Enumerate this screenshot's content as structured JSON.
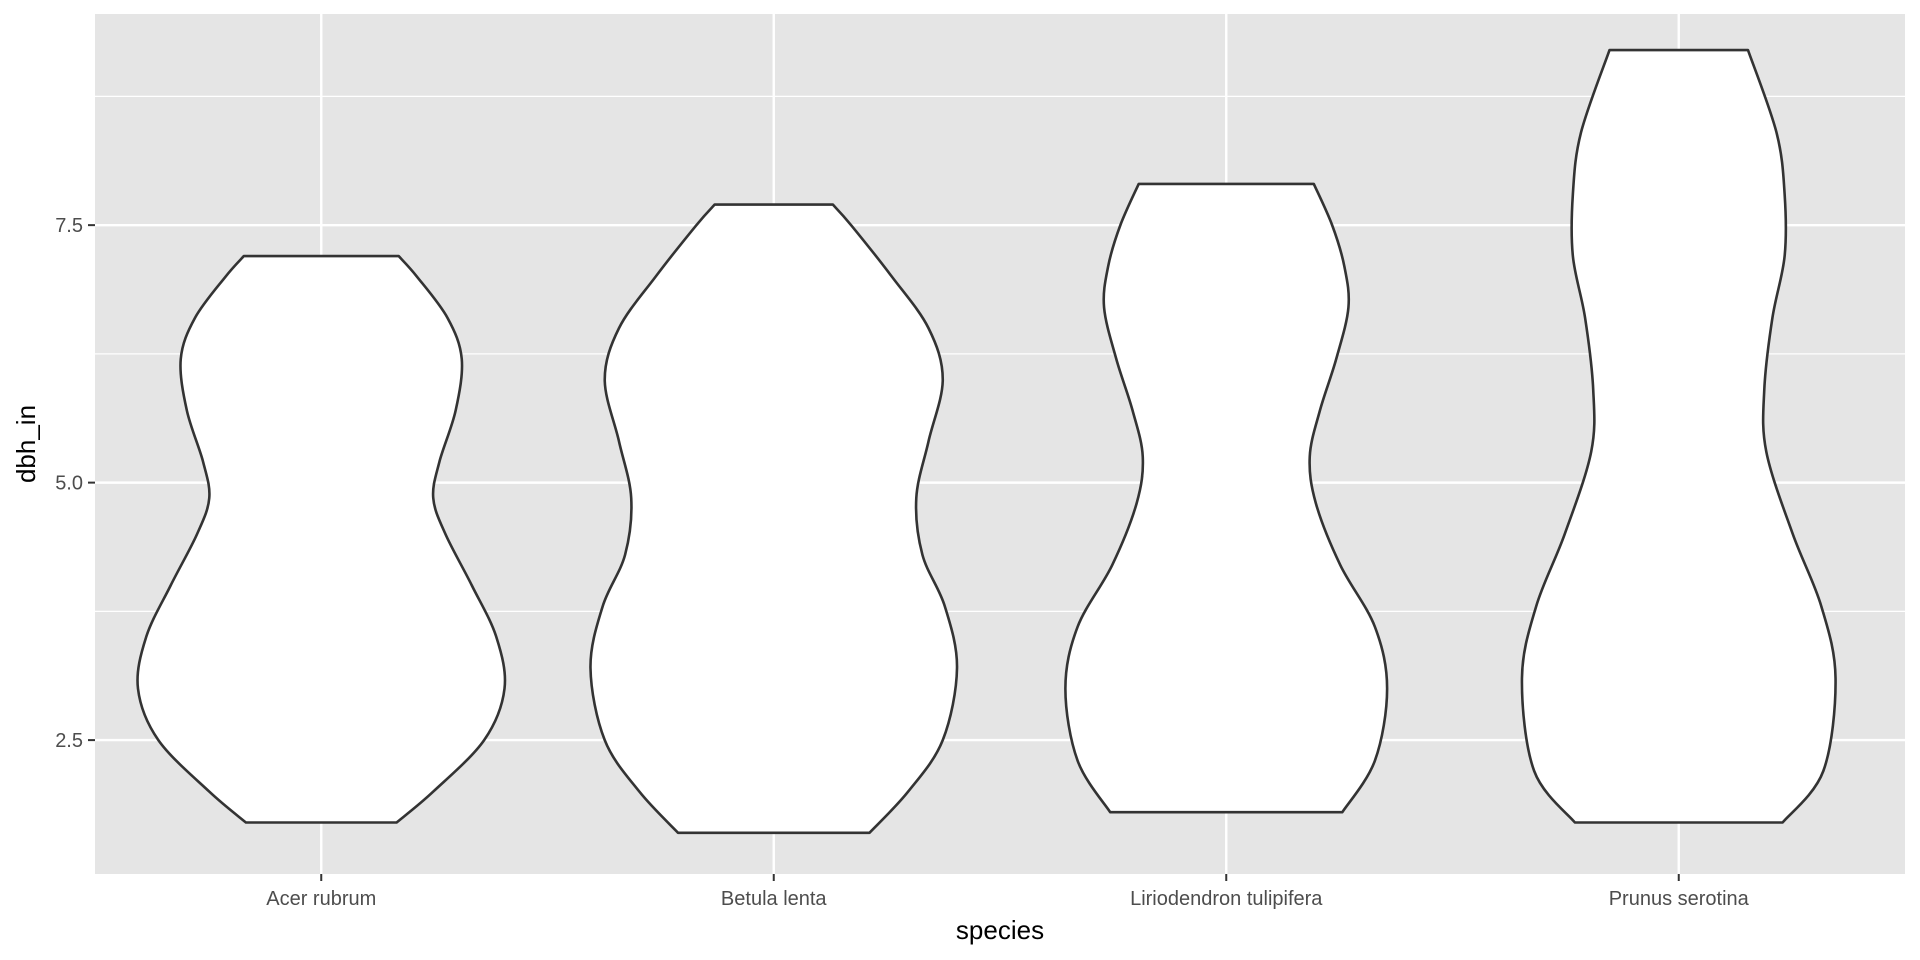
{
  "chart_data": {
    "type": "violin",
    "xlabel": "species",
    "ylabel": "dbh_in",
    "categories": [
      "Acer rubrum",
      "Betula lenta",
      "Liriodendron tulipifera",
      "Prunus serotina"
    ],
    "ylim": [
      1.2,
      9.55
    ],
    "yticks": [
      2.5,
      5.0,
      7.5
    ],
    "ytick_labels": [
      "2.5",
      "5.0",
      "7.5"
    ],
    "y_minor_grid": [
      3.75,
      6.25,
      8.75
    ],
    "grid": true,
    "background_color": "#e5e5e5",
    "grid_color": "#ffffff",
    "violin_fill": "#ffffff",
    "violin_stroke": "#333333",
    "violins": [
      {
        "category": "Acer rubrum",
        "profile": [
          [
            1.7,
            0.37
          ],
          [
            2.0,
            0.55
          ],
          [
            2.5,
            0.8
          ],
          [
            3.0,
            0.9
          ],
          [
            3.5,
            0.86
          ],
          [
            4.0,
            0.74
          ],
          [
            4.5,
            0.61
          ],
          [
            4.85,
            0.55
          ],
          [
            5.2,
            0.58
          ],
          [
            5.7,
            0.66
          ],
          [
            6.2,
            0.69
          ],
          [
            6.6,
            0.62
          ],
          [
            7.0,
            0.47
          ],
          [
            7.2,
            0.38
          ]
        ]
      },
      {
        "category": "Betula lenta",
        "profile": [
          [
            1.6,
            0.47
          ],
          [
            2.0,
            0.66
          ],
          [
            2.5,
            0.83
          ],
          [
            3.2,
            0.9
          ],
          [
            3.8,
            0.84
          ],
          [
            4.3,
            0.73
          ],
          [
            4.85,
            0.7
          ],
          [
            5.4,
            0.76
          ],
          [
            6.0,
            0.83
          ],
          [
            6.5,
            0.76
          ],
          [
            7.0,
            0.58
          ],
          [
            7.5,
            0.38
          ],
          [
            7.7,
            0.29
          ]
        ]
      },
      {
        "category": "Liriodendron tulipifera",
        "profile": [
          [
            1.8,
            0.57
          ],
          [
            2.3,
            0.73
          ],
          [
            3.0,
            0.79
          ],
          [
            3.6,
            0.73
          ],
          [
            4.2,
            0.56
          ],
          [
            4.8,
            0.44
          ],
          [
            5.25,
            0.41
          ],
          [
            5.7,
            0.46
          ],
          [
            6.2,
            0.54
          ],
          [
            6.7,
            0.6
          ],
          [
            7.1,
            0.58
          ],
          [
            7.5,
            0.52
          ],
          [
            7.9,
            0.43
          ]
        ]
      },
      {
        "category": "Prunus serotina",
        "profile": [
          [
            1.7,
            0.51
          ],
          [
            2.2,
            0.71
          ],
          [
            3.1,
            0.77
          ],
          [
            3.8,
            0.7
          ],
          [
            4.5,
            0.56
          ],
          [
            5.3,
            0.43
          ],
          [
            5.9,
            0.42
          ],
          [
            6.6,
            0.46
          ],
          [
            7.2,
            0.52
          ],
          [
            7.8,
            0.52
          ],
          [
            8.4,
            0.48
          ],
          [
            9.2,
            0.34
          ]
        ]
      }
    ]
  }
}
